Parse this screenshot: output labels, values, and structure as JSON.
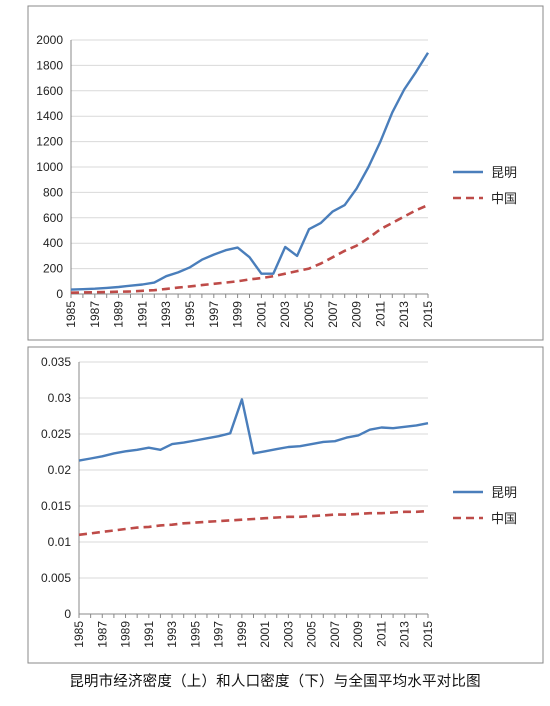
{
  "caption": "昆明市经济密度（上）和人口密度（下）与全国平均水平对比图",
  "chart_data": [
    {
      "type": "line",
      "x": [
        1985,
        1986,
        1987,
        1988,
        1989,
        1990,
        1991,
        1992,
        1993,
        1994,
        1995,
        1996,
        1997,
        1998,
        1999,
        2000,
        2001,
        2002,
        2003,
        2004,
        2005,
        2006,
        2007,
        2008,
        2009,
        2010,
        2011,
        2012,
        2013,
        2014,
        2015
      ],
      "xticks": [
        "1985",
        "1987",
        "1989",
        "1991",
        "1993",
        "1995",
        "1997",
        "1999",
        "2001",
        "2003",
        "2005",
        "2007",
        "2009",
        "2011",
        "2013",
        "2015"
      ],
      "ylim": [
        0,
        2000
      ],
      "yticks": [
        "0",
        "200",
        "400",
        "600",
        "800",
        "1000",
        "1200",
        "1400",
        "1600",
        "1800",
        "2000"
      ],
      "grid": true,
      "legend": "right",
      "series": [
        {
          "name": "昆明",
          "color": "#4a7ebb",
          "style": "solid",
          "values": [
            35,
            38,
            42,
            48,
            55,
            65,
            75,
            90,
            140,
            170,
            210,
            270,
            310,
            345,
            365,
            290,
            160,
            160,
            370,
            300,
            510,
            560,
            650,
            700,
            830,
            1000,
            1200,
            1430,
            1610,
            1750,
            1900
          ]
        },
        {
          "name": "中国",
          "color": "#be4b48",
          "style": "dashed",
          "values": [
            10,
            12,
            14,
            16,
            18,
            20,
            25,
            30,
            40,
            50,
            60,
            70,
            80,
            90,
            100,
            115,
            125,
            140,
            160,
            180,
            200,
            240,
            290,
            340,
            380,
            440,
            510,
            560,
            610,
            660,
            700
          ]
        }
      ]
    },
    {
      "type": "line",
      "x": [
        1985,
        1986,
        1987,
        1988,
        1989,
        1990,
        1991,
        1992,
        1993,
        1994,
        1995,
        1996,
        1997,
        1998,
        1999,
        2000,
        2001,
        2002,
        2003,
        2004,
        2005,
        2006,
        2007,
        2008,
        2009,
        2010,
        2011,
        2012,
        2013,
        2014,
        2015
      ],
      "xticks": [
        "1985",
        "1987",
        "1989",
        "1991",
        "1993",
        "1995",
        "1997",
        "1999",
        "2001",
        "2003",
        "2005",
        "2007",
        "2009",
        "2011",
        "2013",
        "2015"
      ],
      "ylim": [
        0,
        0.035
      ],
      "yticks": [
        "0",
        "0.005",
        "0.01",
        "0.015",
        "0.02",
        "0.025",
        "0.03",
        "0.035"
      ],
      "grid": true,
      "legend": "right",
      "series": [
        {
          "name": "昆明",
          "color": "#4a7ebb",
          "style": "solid",
          "values": [
            0.0213,
            0.0216,
            0.0219,
            0.0223,
            0.0226,
            0.0228,
            0.0231,
            0.0228,
            0.0236,
            0.0238,
            0.0241,
            0.0244,
            0.0247,
            0.0251,
            0.0298,
            0.0223,
            0.0226,
            0.0229,
            0.0232,
            0.0233,
            0.0236,
            0.0239,
            0.024,
            0.0245,
            0.0248,
            0.0256,
            0.0259,
            0.0258,
            0.026,
            0.0262,
            0.0265
          ]
        },
        {
          "name": "中国",
          "color": "#be4b48",
          "style": "dashed",
          "values": [
            0.011,
            0.0112,
            0.0114,
            0.0116,
            0.0118,
            0.012,
            0.0121,
            0.0123,
            0.0124,
            0.0126,
            0.0127,
            0.0128,
            0.0129,
            0.013,
            0.0131,
            0.0132,
            0.0133,
            0.0134,
            0.0135,
            0.0135,
            0.0136,
            0.0137,
            0.0138,
            0.0138,
            0.0139,
            0.014,
            0.014,
            0.0141,
            0.0142,
            0.0142,
            0.0143
          ]
        }
      ]
    }
  ]
}
